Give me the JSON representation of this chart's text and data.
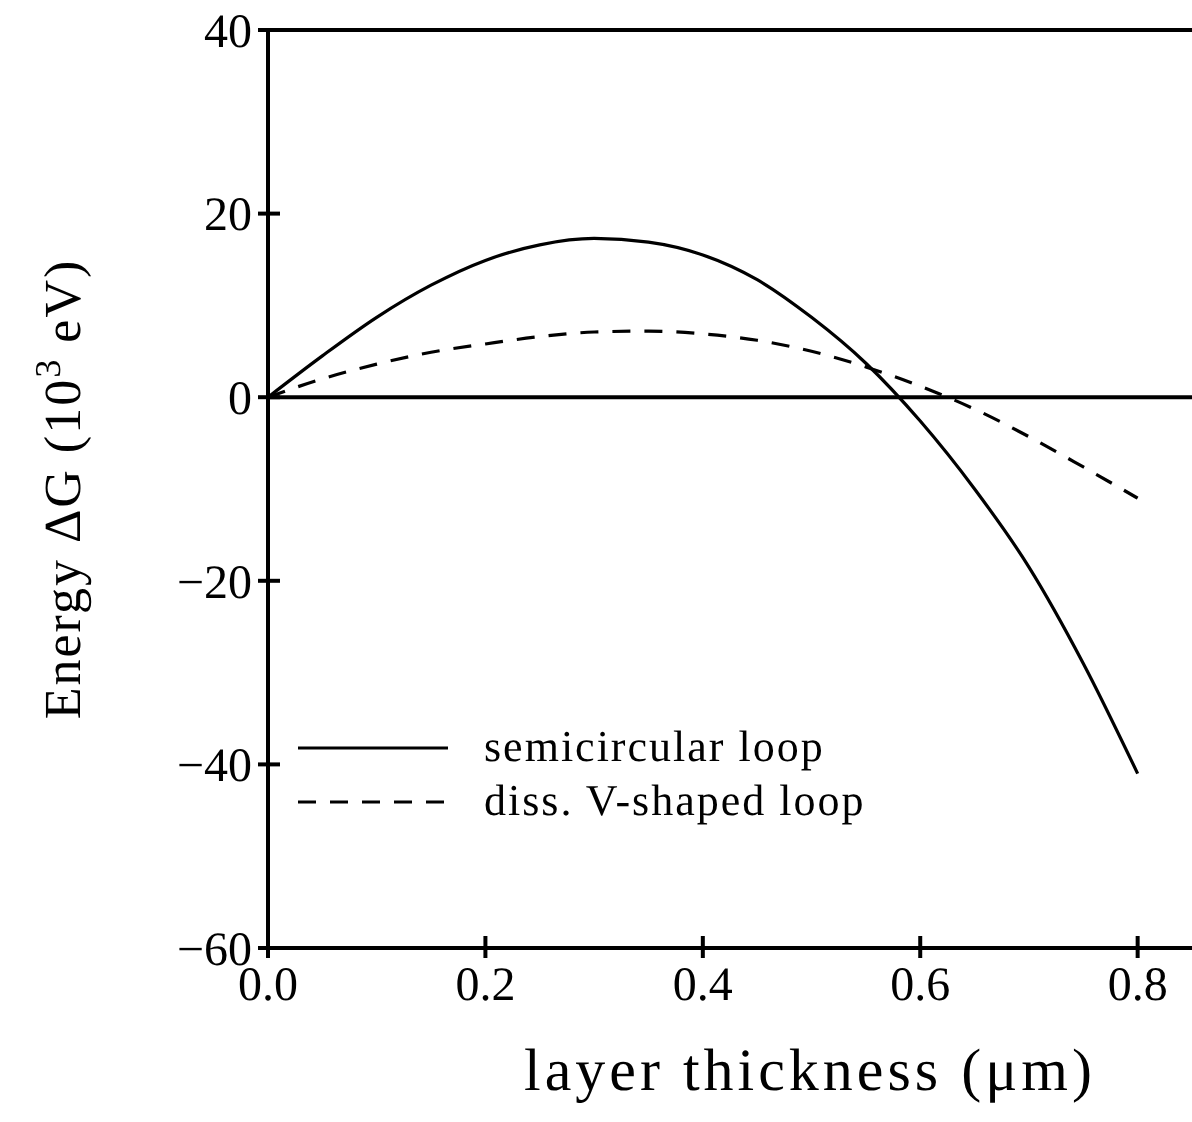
{
  "chart_data": {
    "type": "line",
    "xlabel": "layer thickness (μm)",
    "ylabel": "Energy ΔG (10$^{3}$ eV)",
    "x": [
      0,
      0.05,
      0.1,
      0.15,
      0.2,
      0.25,
      0.3,
      0.35,
      0.4,
      0.45,
      0.5,
      0.55,
      0.6,
      0.65,
      0.7,
      0.75,
      0.8
    ],
    "series": [
      {
        "name": "semicircular loop",
        "color": "#000000",
        "line_style": "solid",
        "values": [
          0,
          4.5,
          8.7,
          12.2,
          14.9,
          16.6,
          17.3,
          16.9,
          15.5,
          12.8,
          8.7,
          3.7,
          -2.6,
          -10,
          -18.5,
          -29,
          -41
        ]
      },
      {
        "name": "diss. V-shaped loop",
        "color": "#000000",
        "line_style": "dashed",
        "values": [
          0,
          2,
          3.6,
          4.9,
          5.8,
          6.6,
          7.1,
          7.2,
          6.9,
          6.2,
          5,
          3.3,
          1.2,
          -1.3,
          -4.3,
          -7.6,
          -11
        ]
      }
    ],
    "xlim": [
      0,
      0.85
    ],
    "ylim": [
      -60,
      40
    ],
    "xticks": [
      {
        "value": 0,
        "label": "0.0"
      },
      0.2,
      0.4,
      0.6,
      0.8
    ],
    "yticks": [
      -60,
      -40,
      -20,
      0,
      20,
      40
    ],
    "ref_lines": [
      {
        "axis": "y",
        "value": 0,
        "color": "#000000"
      }
    ],
    "legend": "bottom left",
    "grid": false,
    "marker": "none"
  }
}
